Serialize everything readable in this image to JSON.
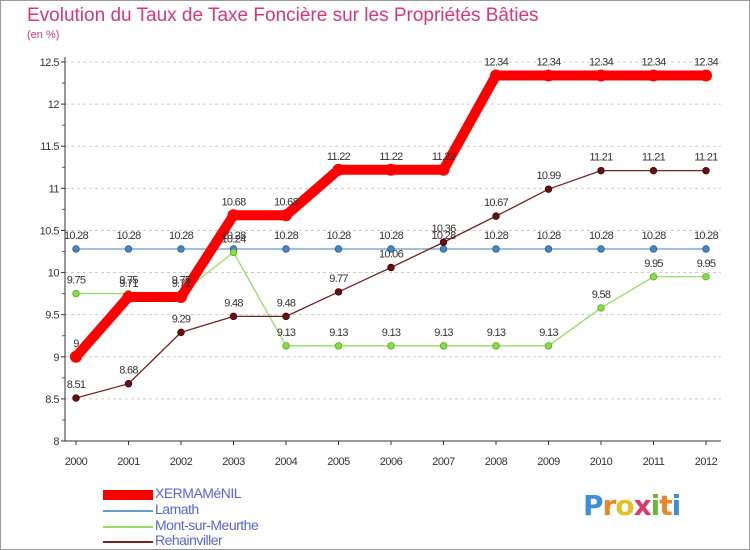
{
  "title": "Evolution du Taux de Taxe Foncière sur les Propriétés Bâties",
  "unit_label": "(en %)",
  "logo": {
    "letters": [
      "P",
      "r",
      "o",
      "x",
      "i",
      "t",
      "i"
    ],
    "colors": [
      "#3a8fd6",
      "#e8882a",
      "#e0c22a",
      "#d93a6a",
      "#6ab83a",
      "#e8882a",
      "#3a8fd6"
    ]
  },
  "chart_data": {
    "type": "line",
    "title": "Evolution du Taux de Taxe Foncière sur les Propriétés Bâties",
    "ylabel": "(en %)",
    "x": [
      "2000",
      "2001",
      "2002",
      "2003",
      "2004",
      "2005",
      "2006",
      "2007",
      "2008",
      "2009",
      "2010",
      "2011",
      "2012"
    ],
    "ylim": [
      8,
      12.5
    ],
    "yticks": [
      "8",
      "8.5",
      "9",
      "9.5",
      "10",
      "10.5",
      "11",
      "11.5",
      "12",
      "12.5"
    ],
    "series": [
      {
        "name": "XERMAMéNIL",
        "color": "#ff0000",
        "values": [
          9,
          9.71,
          9.71,
          10.68,
          10.68,
          11.22,
          11.22,
          11.22,
          12.34,
          12.34,
          12.34,
          12.34,
          12.34
        ],
        "labels": [
          "9",
          "9.71",
          "9.71",
          "10.68",
          "10.68",
          "11.22",
          "11.22",
          "11.22",
          "12.34",
          "12.34",
          "12.34",
          "12.34",
          "12.34"
        ]
      },
      {
        "name": "Lamath",
        "color": "#6699cc",
        "values": [
          10.28,
          10.28,
          10.28,
          10.28,
          10.28,
          10.28,
          10.28,
          10.28,
          10.28,
          10.28,
          10.28,
          10.28,
          10.28
        ],
        "labels": [
          "10.28",
          "10.28",
          "10.28",
          "10.28",
          "10.28",
          "10.28",
          "10.28",
          "10.28",
          "10.28",
          "10.28",
          "10.28",
          "10.28",
          "10.28"
        ]
      },
      {
        "name": "Mont-sur-Meurthe",
        "color": "#99dd66",
        "values": [
          9.75,
          9.75,
          9.75,
          10.24,
          9.13,
          9.13,
          9.13,
          9.13,
          9.13,
          9.13,
          9.58,
          9.95,
          9.95
        ],
        "labels": [
          "9.75",
          "9.75",
          "9.75",
          "10.24",
          "9.13",
          "9.13",
          "9.13",
          "9.13",
          "9.13",
          "9.13",
          "9.58",
          "9.95",
          "9.95"
        ]
      },
      {
        "name": "Rehainviller",
        "color": "#772222",
        "values": [
          8.51,
          8.68,
          9.29,
          9.48,
          9.48,
          9.77,
          10.06,
          10.36,
          10.67,
          10.99,
          11.21,
          11.21,
          11.21
        ],
        "labels": [
          "8.51",
          "8.68",
          "9.29",
          "9.48",
          "9.48",
          "9.77",
          "10.06",
          "10.36",
          "10.67",
          "10.99",
          "11.21",
          "11.21",
          "11.21"
        ]
      }
    ]
  }
}
